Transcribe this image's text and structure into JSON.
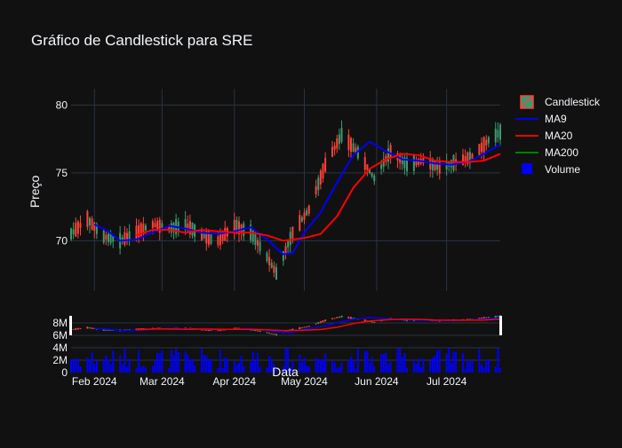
{
  "chart_data": {
    "type": "candlestick",
    "title": "Gráfico de Candlestick para SRE",
    "ylabel": "Preço",
    "xlabel": "Data",
    "ylim": [
      66.3,
      81.2
    ],
    "y_ticks": [
      70,
      75,
      80
    ],
    "volume_ticks": [
      "0",
      "2M",
      "4M",
      "6M",
      "8M"
    ],
    "x_ticks": [
      {
        "date": "2024-02-01",
        "label": "Feb 2024"
      },
      {
        "date": "2024-03-01",
        "label": "Mar 2024"
      },
      {
        "date": "2024-04-01",
        "label": "Apr 2024"
      },
      {
        "date": "2024-05-01",
        "label": "May 2024"
      },
      {
        "date": "2024-06-01",
        "label": "Jun 2024"
      },
      {
        "date": "2024-07-01",
        "label": "Jul 2024"
      }
    ],
    "date_range": [
      "2024-01-22",
      "2024-07-24"
    ],
    "legend": [
      "Candlestick",
      "MA9",
      "MA20",
      "MA200",
      "Volume"
    ],
    "legend_position": "top-right",
    "colors": {
      "increasing": "#3d9970",
      "decreasing": "#ff4136",
      "ma9": "#0000ff",
      "ma20": "#ff0000",
      "ma200": "#008000",
      "volume": "#0000ff"
    },
    "series": [
      {
        "name": "Candlestick",
        "type": "candlestick",
        "approx_close_path": [
          {
            "date": "2024-01-22",
            "close": 70.5
          },
          {
            "date": "2024-01-29",
            "close": 71.6
          },
          {
            "date": "2024-02-05",
            "close": 70.3
          },
          {
            "date": "2024-02-12",
            "close": 70.0
          },
          {
            "date": "2024-02-19",
            "close": 70.6
          },
          {
            "date": "2024-02-26",
            "close": 71.2
          },
          {
            "date": "2024-03-04",
            "close": 70.9
          },
          {
            "date": "2024-03-11",
            "close": 71.2
          },
          {
            "date": "2024-03-18",
            "close": 70.4
          },
          {
            "date": "2024-03-25",
            "close": 70.0
          },
          {
            "date": "2024-04-01",
            "close": 71.1
          },
          {
            "date": "2024-04-08",
            "close": 70.6
          },
          {
            "date": "2024-04-15",
            "close": 68.8
          },
          {
            "date": "2024-04-19",
            "close": 67.6
          },
          {
            "date": "2024-04-26",
            "close": 70.6
          },
          {
            "date": "2024-05-03",
            "close": 72.3
          },
          {
            "date": "2024-05-10",
            "close": 75.6
          },
          {
            "date": "2024-05-17",
            "close": 77.8
          },
          {
            "date": "2024-05-24",
            "close": 76.5
          },
          {
            "date": "2024-05-31",
            "close": 74.6
          },
          {
            "date": "2024-06-07",
            "close": 76.6
          },
          {
            "date": "2024-06-14",
            "close": 75.6
          },
          {
            "date": "2024-06-21",
            "close": 75.9
          },
          {
            "date": "2024-06-28",
            "close": 75.4
          },
          {
            "date": "2024-07-05",
            "close": 75.8
          },
          {
            "date": "2024-07-12",
            "close": 76.2
          },
          {
            "date": "2024-07-19",
            "close": 77.4
          },
          {
            "date": "2024-07-24",
            "close": 78.0
          }
        ]
      },
      {
        "name": "MA9",
        "type": "line",
        "points": [
          {
            "date": "2024-02-01",
            "value": 71.2
          },
          {
            "date": "2024-02-07",
            "value": 70.7
          },
          {
            "date": "2024-02-12",
            "value": 70.0
          },
          {
            "date": "2024-02-19",
            "value": 70.1
          },
          {
            "date": "2024-02-26",
            "value": 70.6
          },
          {
            "date": "2024-03-04",
            "value": 71.1
          },
          {
            "date": "2024-03-11",
            "value": 70.9
          },
          {
            "date": "2024-03-18",
            "value": 70.6
          },
          {
            "date": "2024-03-25",
            "value": 70.5
          },
          {
            "date": "2024-04-01",
            "value": 70.7
          },
          {
            "date": "2024-04-08",
            "value": 71.0
          },
          {
            "date": "2024-04-15",
            "value": 70.1
          },
          {
            "date": "2024-04-22",
            "value": 69.0
          },
          {
            "date": "2024-04-26",
            "value": 69.1
          },
          {
            "date": "2024-05-01",
            "value": 70.6
          },
          {
            "date": "2024-05-08",
            "value": 72.1
          },
          {
            "date": "2024-05-15",
            "value": 74.3
          },
          {
            "date": "2024-05-22",
            "value": 76.3
          },
          {
            "date": "2024-05-29",
            "value": 77.3
          },
          {
            "date": "2024-06-05",
            "value": 76.6
          },
          {
            "date": "2024-06-12",
            "value": 76.0
          },
          {
            "date": "2024-06-19",
            "value": 75.9
          },
          {
            "date": "2024-06-26",
            "value": 75.7
          },
          {
            "date": "2024-07-03",
            "value": 75.6
          },
          {
            "date": "2024-07-10",
            "value": 75.8
          },
          {
            "date": "2024-07-17",
            "value": 76.4
          },
          {
            "date": "2024-07-24",
            "value": 77.1
          }
        ]
      },
      {
        "name": "MA20",
        "type": "line",
        "points": [
          {
            "date": "2024-02-19",
            "value": 70.4
          },
          {
            "date": "2024-02-26",
            "value": 70.8
          },
          {
            "date": "2024-03-04",
            "value": 70.8
          },
          {
            "date": "2024-03-11",
            "value": 70.6
          },
          {
            "date": "2024-03-18",
            "value": 70.8
          },
          {
            "date": "2024-03-25",
            "value": 70.7
          },
          {
            "date": "2024-04-01",
            "value": 70.6
          },
          {
            "date": "2024-04-08",
            "value": 70.6
          },
          {
            "date": "2024-04-15",
            "value": 70.4
          },
          {
            "date": "2024-04-22",
            "value": 70.0
          },
          {
            "date": "2024-05-01",
            "value": 70.2
          },
          {
            "date": "2024-05-08",
            "value": 70.5
          },
          {
            "date": "2024-05-15",
            "value": 71.8
          },
          {
            "date": "2024-05-22",
            "value": 73.9
          },
          {
            "date": "2024-05-29",
            "value": 75.3
          },
          {
            "date": "2024-06-05",
            "value": 76.0
          },
          {
            "date": "2024-06-12",
            "value": 76.4
          },
          {
            "date": "2024-06-19",
            "value": 76.3
          },
          {
            "date": "2024-06-26",
            "value": 75.9
          },
          {
            "date": "2024-07-03",
            "value": 75.8
          },
          {
            "date": "2024-07-10",
            "value": 75.8
          },
          {
            "date": "2024-07-17",
            "value": 75.9
          },
          {
            "date": "2024-07-24",
            "value": 76.4
          }
        ]
      },
      {
        "name": "MA200",
        "type": "line",
        "points": []
      },
      {
        "name": "Volume",
        "type": "bar",
        "unit": "shares",
        "range": [
          0,
          3500000
        ]
      }
    ]
  }
}
